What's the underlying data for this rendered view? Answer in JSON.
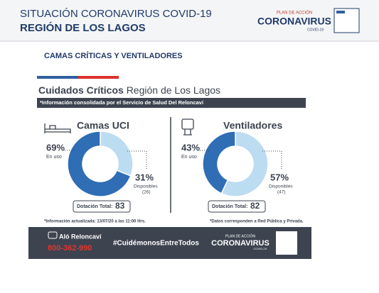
{
  "header": {
    "title": "SITUACIÓN CORONAVIRUS COVID-19",
    "subtitle": "REGIÓN DE LOS LAGOS",
    "logo_top": "PLAN DE ACCIÓN",
    "logo_main": "CORONAVIRUS",
    "logo_sub": "COVID-19"
  },
  "section_title": "CAMAS CRÍTICAS Y VENTILADORES",
  "card": {
    "title_bold": "Cuidados Críticos",
    "title_rest": "Región de Los Lagos",
    "note": "*Información consolidada por el Servicio de Salud Del Reloncaví",
    "footnote_left": "*Información actualizada: 13/07/20 a las 11:00 Hrs.",
    "footnote_right": "*Datos corresponden a Red Pública y Privada.",
    "footer": {
      "name": "Aló Reloncaví",
      "phone": "800-362-990",
      "hashtag": "#CuidémonosEntreTodos",
      "logo_top": "PLAN DE ACCIÓN",
      "logo_main": "CORONAVIRUS",
      "logo_sub": "COVID-19"
    }
  },
  "chart_data": [
    {
      "type": "donut",
      "title": "Camas UCI",
      "categories": [
        "En uso",
        "Disponibles"
      ],
      "values": [
        69,
        31
      ],
      "value_labels": [
        "69%",
        "31%"
      ],
      "colors": [
        "#2f6db5",
        "#bcdcf2"
      ],
      "available_count": "(26)",
      "total_label": "Dotación Total:",
      "total": 83
    },
    {
      "type": "donut",
      "title": "Ventiladores",
      "categories": [
        "En uso",
        "Disponibles"
      ],
      "values": [
        43,
        57
      ],
      "value_labels": [
        "43%",
        "57%"
      ],
      "colors": [
        "#2f6db5",
        "#bcdcf2"
      ],
      "available_count": "(47)",
      "total_label": "Dotación Total:",
      "total": 82
    }
  ]
}
